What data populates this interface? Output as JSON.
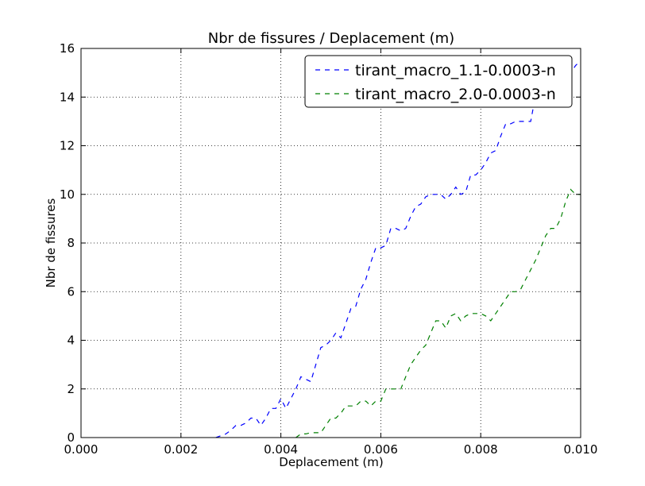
{
  "chart_data": {
    "type": "line",
    "title": "Nbr de fissures / Deplacement (m)",
    "xlabel": "Deplacement (m)",
    "ylabel": "Nbr de fissures",
    "xlim": [
      0.0,
      0.01
    ],
    "ylim": [
      0,
      16
    ],
    "xticks": [
      "0.000",
      "0.002",
      "0.004",
      "0.006",
      "0.008",
      "0.010"
    ],
    "xtick_values": [
      0.0,
      0.002,
      0.004,
      0.006,
      0.008,
      0.01
    ],
    "yticks": [
      "0",
      "2",
      "4",
      "6",
      "8",
      "10",
      "12",
      "14",
      "16"
    ],
    "ytick_values": [
      0,
      2,
      4,
      6,
      8,
      10,
      12,
      14,
      16
    ],
    "grid": true,
    "legend_position": "top-right",
    "series": [
      {
        "name": "tirant_macro_1.1-0.0003-n",
        "color": "#0000ff",
        "x": [
          0.0027,
          0.0029,
          0.003,
          0.0031,
          0.0032,
          0.0033,
          0.0034,
          0.0035,
          0.0036,
          0.0037,
          0.0038,
          0.0039,
          0.004,
          0.0041,
          0.0042,
          0.0043,
          0.0044,
          0.0045,
          0.0046,
          0.0047,
          0.0048,
          0.0049,
          0.005,
          0.0051,
          0.0052,
          0.0053,
          0.0054,
          0.0055,
          0.0056,
          0.0057,
          0.0058,
          0.0059,
          0.006,
          0.0061,
          0.0062,
          0.0063,
          0.0064,
          0.0065,
          0.0066,
          0.0067,
          0.0068,
          0.0069,
          0.007,
          0.0071,
          0.0072,
          0.0073,
          0.0074,
          0.0075,
          0.0076,
          0.0077,
          0.0078,
          0.0079,
          0.008,
          0.0081,
          0.0082,
          0.0083,
          0.0084,
          0.0085,
          0.0086,
          0.0087,
          0.0088,
          0.0089,
          0.009,
          0.0091,
          0.0092,
          0.0093,
          0.0094,
          0.0095,
          0.0096,
          0.0097,
          0.0098,
          0.0099,
          0.01
        ],
        "y": [
          0,
          0.15,
          0.3,
          0.5,
          0.5,
          0.6,
          0.8,
          0.8,
          0.5,
          0.8,
          1.2,
          1.2,
          1.6,
          1.2,
          1.6,
          2.0,
          2.5,
          2.4,
          2.3,
          3.0,
          3.7,
          3.8,
          4.0,
          4.3,
          4.1,
          4.7,
          5.3,
          5.4,
          6.1,
          6.5,
          7.2,
          7.8,
          7.8,
          7.9,
          8.6,
          8.6,
          8.5,
          8.6,
          9.1,
          9.5,
          9.6,
          9.9,
          10.0,
          10.0,
          10.0,
          9.8,
          10.0,
          10.3,
          10.0,
          10.1,
          10.8,
          10.8,
          11.0,
          11.3,
          11.7,
          11.8,
          12.4,
          12.9,
          12.9,
          13.0,
          13.0,
          13.0,
          13.0,
          14.1,
          14.6,
          14.6,
          14.5,
          15.1,
          15.3,
          15.3,
          15.0,
          15.3,
          15.5
        ]
      },
      {
        "name": "tirant_macro_2.0-0.0003-n",
        "color": "#008000",
        "x": [
          0.0043,
          0.0044,
          0.0045,
          0.0046,
          0.0047,
          0.0048,
          0.0049,
          0.005,
          0.0051,
          0.0052,
          0.0053,
          0.0054,
          0.0055,
          0.0056,
          0.0057,
          0.0058,
          0.0059,
          0.006,
          0.0061,
          0.0062,
          0.0063,
          0.0064,
          0.0065,
          0.0066,
          0.0067,
          0.0068,
          0.0069,
          0.007,
          0.0071,
          0.0072,
          0.0073,
          0.0074,
          0.0075,
          0.0076,
          0.0077,
          0.0078,
          0.0079,
          0.008,
          0.0081,
          0.0082,
          0.0083,
          0.0084,
          0.0085,
          0.0086,
          0.0087,
          0.0088,
          0.0089,
          0.009,
          0.0091,
          0.0092,
          0.0093,
          0.0094,
          0.0095,
          0.0096,
          0.0097,
          0.0098,
          0.0099,
          0.01
        ],
        "y": [
          0,
          0.15,
          0.15,
          0.2,
          0.2,
          0.2,
          0.5,
          0.8,
          0.8,
          1.0,
          1.3,
          1.3,
          1.3,
          1.5,
          1.5,
          1.3,
          1.5,
          1.5,
          2.0,
          2.0,
          2.0,
          2.0,
          2.5,
          3.0,
          3.3,
          3.6,
          3.8,
          4.3,
          4.8,
          4.8,
          4.5,
          5.0,
          5.1,
          4.8,
          5.0,
          5.1,
          5.1,
          5.1,
          5.0,
          4.8,
          5.1,
          5.4,
          5.7,
          6.0,
          6.0,
          6.1,
          6.5,
          6.9,
          7.3,
          7.8,
          8.3,
          8.6,
          8.6,
          9.0,
          9.7,
          10.2,
          10.0,
          10.0
        ]
      }
    ]
  }
}
